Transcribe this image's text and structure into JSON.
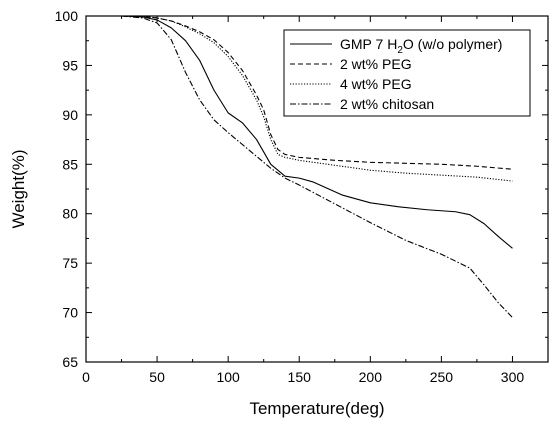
{
  "chart_data": {
    "type": "line",
    "xlabel": "Temperature(deg)",
    "ylabel": "Weight(%)",
    "xlim": [
      0,
      325
    ],
    "ylim": [
      65,
      100
    ],
    "xticks": [
      0,
      50,
      100,
      150,
      200,
      250,
      300
    ],
    "yticks": [
      65,
      70,
      75,
      80,
      85,
      90,
      95,
      100
    ],
    "grid": false,
    "legend_position": "top-right",
    "legend_boxed": true,
    "series": [
      {
        "name": "GMP 7 H2O (w/o polymer)",
        "legend_main": "GMP 7 H",
        "legend_sub": "2",
        "legend_rest": "O (w/o polymer)",
        "style": "solid",
        "x": [
          25,
          40,
          50,
          60,
          70,
          80,
          90,
          100,
          110,
          120,
          130,
          140,
          150,
          160,
          180,
          200,
          220,
          240,
          260,
          270,
          280,
          290,
          300
        ],
        "y": [
          100,
          99.9,
          99.6,
          98.8,
          97.5,
          95.5,
          92.5,
          90.2,
          89.2,
          87.5,
          85.0,
          83.8,
          83.6,
          83.2,
          81.9,
          81.1,
          80.7,
          80.4,
          80.2,
          79.9,
          79.0,
          77.7,
          76.5
        ]
      },
      {
        "name": "2 wt% PEG",
        "style": "dashed",
        "x": [
          25,
          40,
          50,
          60,
          70,
          80,
          90,
          100,
          110,
          120,
          125,
          130,
          135,
          140,
          150,
          175,
          200,
          225,
          250,
          275,
          300
        ],
        "y": [
          100,
          99.95,
          99.8,
          99.5,
          99.0,
          98.4,
          97.6,
          96.3,
          94.5,
          92.0,
          90.5,
          88.0,
          86.5,
          86.0,
          85.7,
          85.4,
          85.2,
          85.1,
          85.0,
          84.8,
          84.5
        ]
      },
      {
        "name": "4 wt% PEG",
        "style": "dotted",
        "x": [
          25,
          40,
          50,
          60,
          70,
          80,
          90,
          100,
          110,
          120,
          125,
          130,
          135,
          140,
          150,
          175,
          200,
          225,
          250,
          275,
          300
        ],
        "y": [
          100,
          99.95,
          99.8,
          99.5,
          98.9,
          98.2,
          97.3,
          95.9,
          94.0,
          91.5,
          89.8,
          87.5,
          86.0,
          85.7,
          85.4,
          84.9,
          84.4,
          84.1,
          83.9,
          83.7,
          83.3
        ]
      },
      {
        "name": "2 wt% chitosan",
        "style": "dashdot",
        "x": [
          25,
          40,
          50,
          60,
          70,
          80,
          90,
          100,
          110,
          120,
          130,
          140,
          150,
          175,
          200,
          225,
          250,
          270,
          280,
          290,
          300
        ],
        "y": [
          100,
          99.8,
          99.3,
          97.6,
          94.3,
          91.5,
          89.5,
          88.2,
          87.0,
          85.8,
          84.6,
          83.6,
          82.9,
          81.0,
          79.1,
          77.3,
          75.9,
          74.5,
          72.8,
          71.0,
          69.5
        ]
      }
    ]
  }
}
